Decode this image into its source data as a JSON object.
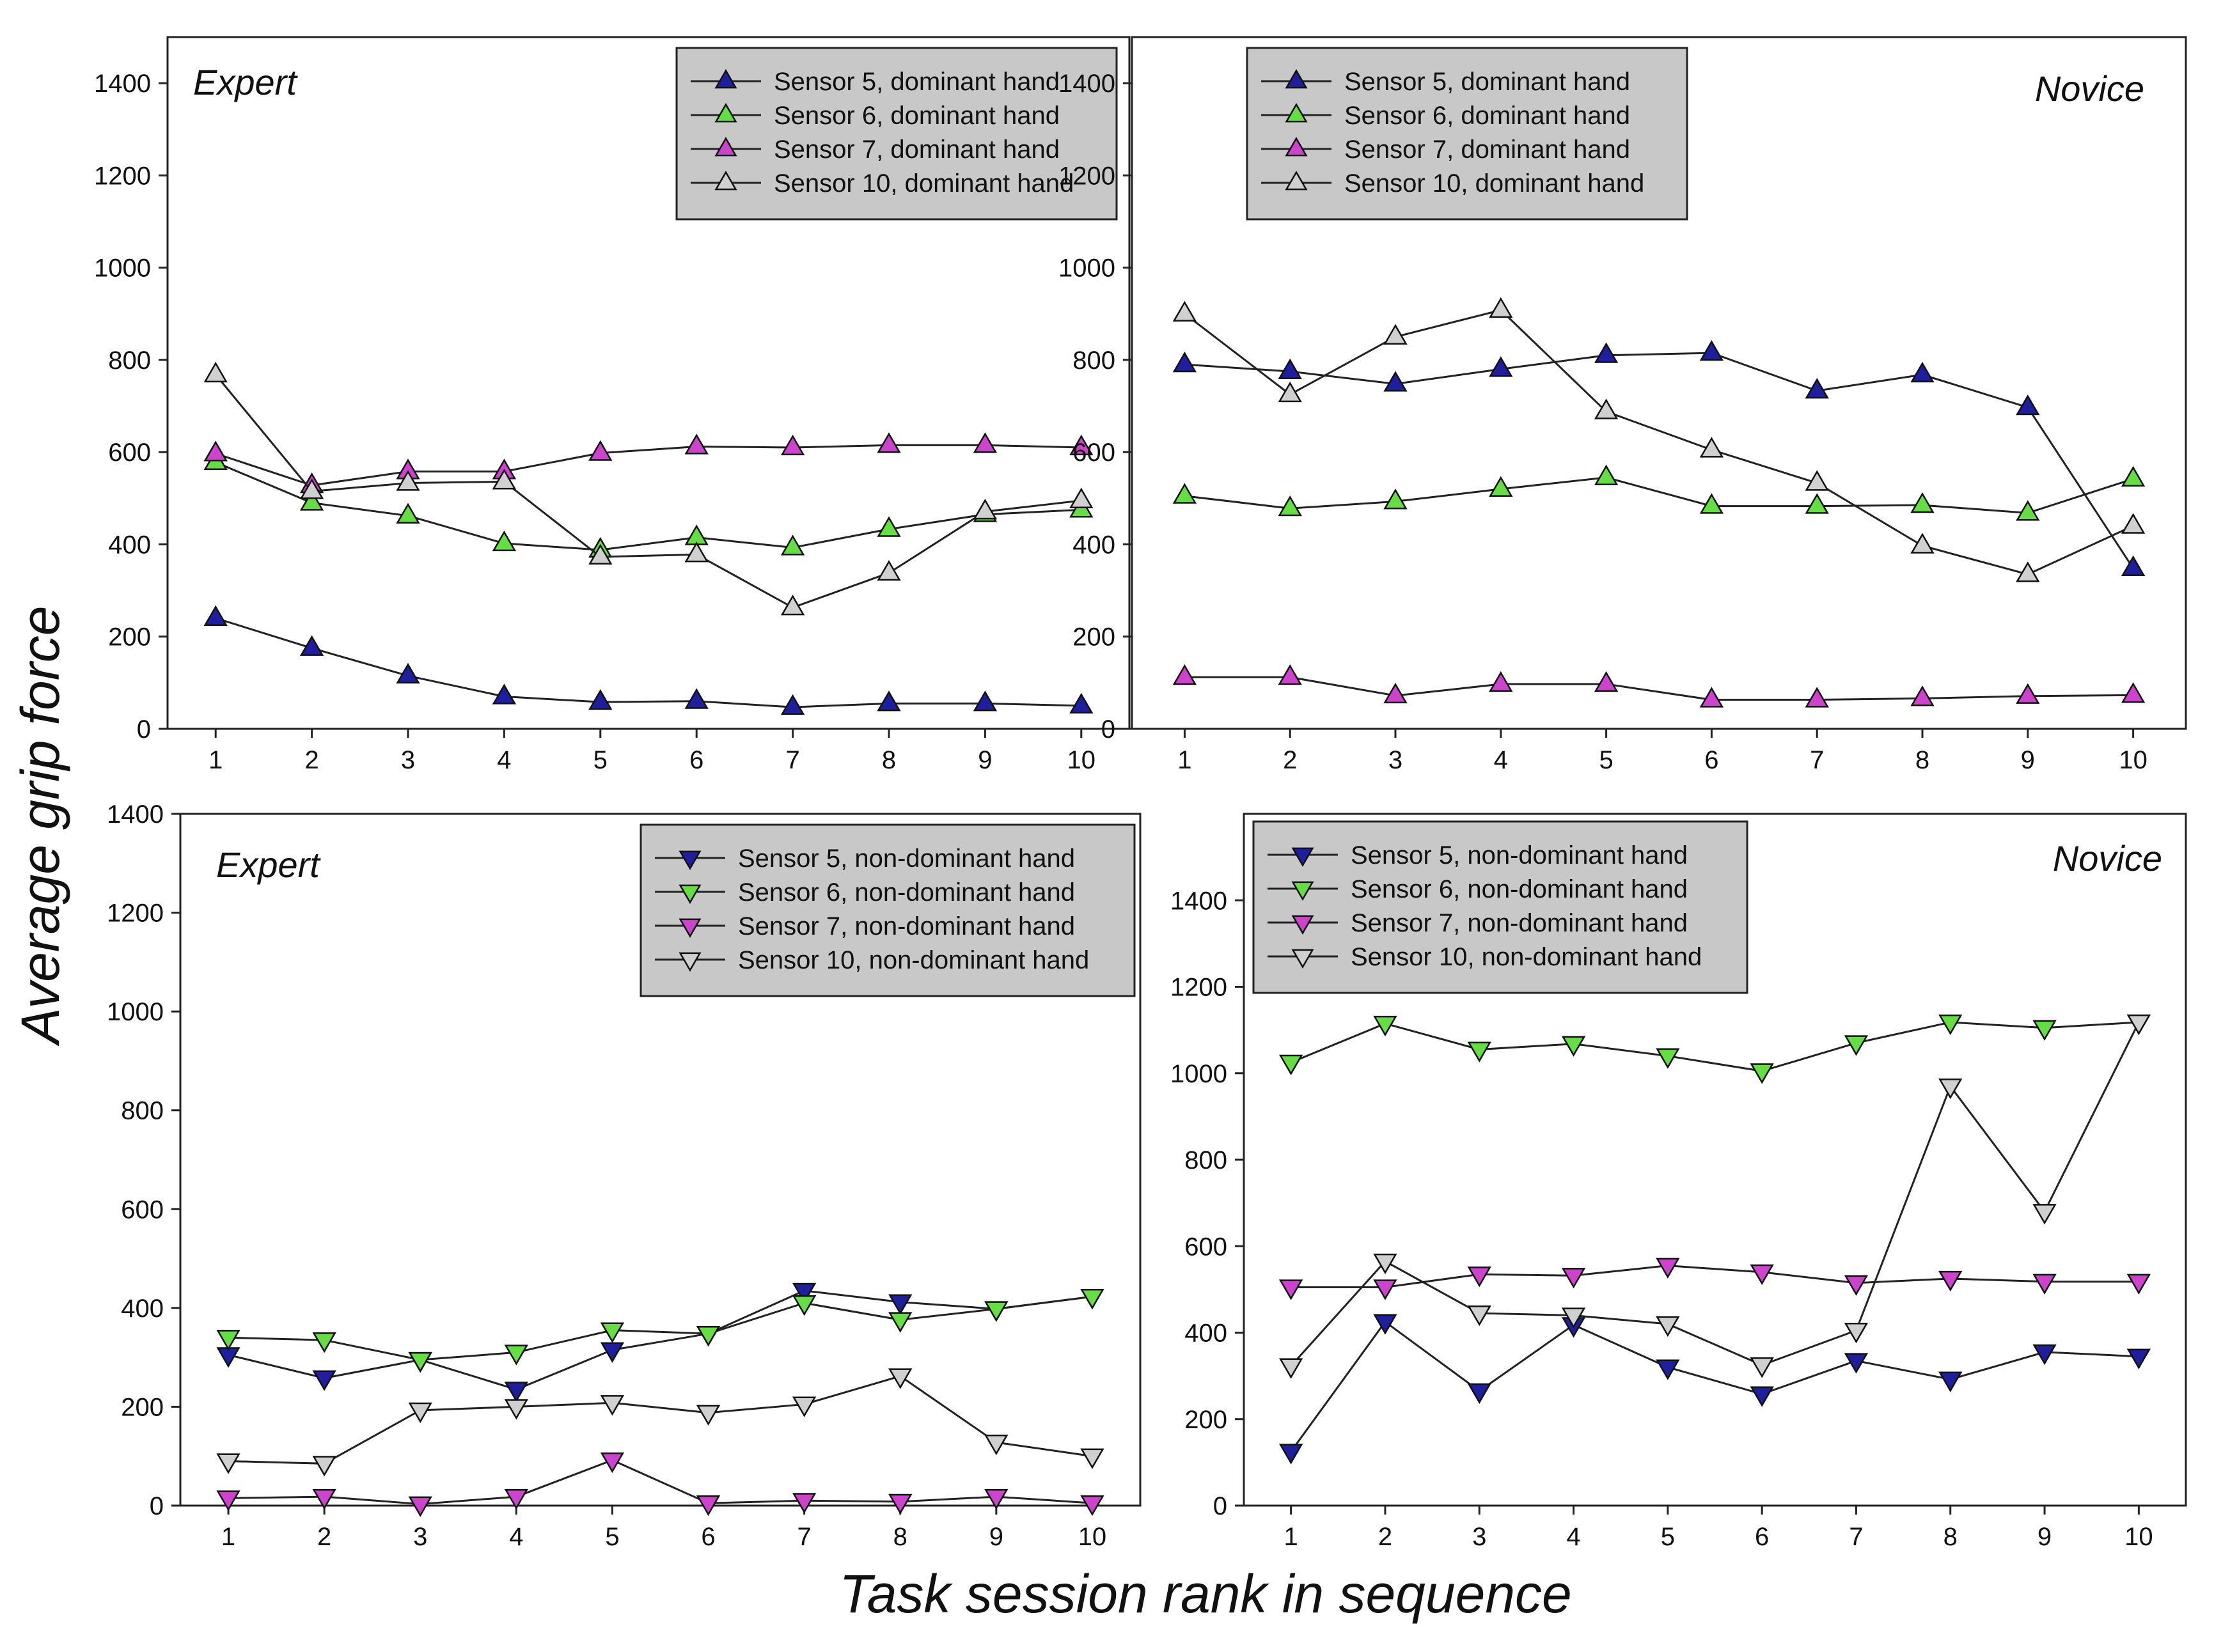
{
  "figure": {
    "ylabel": "Average grip force",
    "xlabel": "Task session rank in sequence"
  },
  "colors": {
    "sensor5": "#1f1f9e",
    "sensor6": "#66dd44",
    "sensor7": "#cc44cc",
    "sensor10": "#d0d0d0",
    "line": "#222222",
    "legend_bg": "#c8c8c8"
  },
  "chart_data": [
    {
      "type": "line",
      "title": "Expert",
      "marker": "triangle-up",
      "x": [
        1,
        2,
        3,
        4,
        5,
        6,
        7,
        8,
        9,
        10
      ],
      "xlim": [
        0.5,
        10.5
      ],
      "ylim": [
        0,
        1500
      ],
      "yticks": [
        0,
        200,
        400,
        600,
        800,
        1000,
        1200,
        1400
      ],
      "legend_position": "top-right",
      "series": [
        {
          "name": "Sensor 5, dominant hand",
          "color_key": "sensor5",
          "values": [
            240,
            175,
            115,
            70,
            58,
            60,
            47,
            55,
            55,
            50
          ]
        },
        {
          "name": "Sensor 6, dominant hand",
          "color_key": "sensor6",
          "values": [
            578,
            490,
            462,
            402,
            388,
            415,
            393,
            433,
            465,
            475
          ]
        },
        {
          "name": "Sensor 7, dominant hand",
          "color_key": "sensor7",
          "values": [
            597,
            528,
            558,
            558,
            598,
            612,
            610,
            615,
            615,
            610
          ]
        },
        {
          "name": "Sensor 10, dominant hand",
          "color_key": "sensor10",
          "values": [
            768,
            515,
            533,
            536,
            373,
            378,
            263,
            338,
            471,
            495
          ]
        }
      ]
    },
    {
      "type": "line",
      "title": "Novice",
      "marker": "triangle-up",
      "x": [
        1,
        2,
        3,
        4,
        5,
        6,
        7,
        8,
        9,
        10
      ],
      "xlim": [
        0.5,
        10.5
      ],
      "ylim": [
        0,
        1500
      ],
      "yticks": [
        0,
        200,
        400,
        600,
        800,
        1000,
        1200,
        1400
      ],
      "legend_position": "top-left",
      "series": [
        {
          "name": "Sensor 5, dominant hand",
          "color_key": "sensor5",
          "values": [
            790,
            775,
            748,
            780,
            810,
            815,
            733,
            768,
            697,
            348
          ]
        },
        {
          "name": "Sensor 6, dominant hand",
          "color_key": "sensor6",
          "values": [
            505,
            478,
            493,
            520,
            545,
            483,
            483,
            485,
            468,
            542
          ]
        },
        {
          "name": "Sensor 7, dominant hand",
          "color_key": "sensor7",
          "values": [
            112,
            112,
            72,
            97,
            97,
            63,
            63,
            66,
            71,
            73
          ]
        },
        {
          "name": "Sensor 10, dominant hand",
          "color_key": "sensor10",
          "values": [
            900,
            725,
            850,
            908,
            688,
            605,
            533,
            397,
            335,
            440
          ]
        }
      ]
    },
    {
      "type": "line",
      "title": "Expert",
      "marker": "triangle-down",
      "x": [
        1,
        2,
        3,
        4,
        5,
        6,
        7,
        8,
        9,
        10
      ],
      "xlim": [
        0.5,
        10.5
      ],
      "ylim": [
        0,
        1400
      ],
      "yticks": [
        0,
        200,
        400,
        600,
        800,
        1000,
        1200,
        1400
      ],
      "legend_position": "top-right",
      "series": [
        {
          "name": "Sensor 5, non-dominant hand",
          "color_key": "sensor5",
          "values": [
            305,
            258,
            295,
            235,
            315,
            348,
            435,
            412,
            398,
            423
          ]
        },
        {
          "name": "Sensor 6, non-dominant hand",
          "color_key": "sensor6",
          "values": [
            340,
            335,
            295,
            310,
            355,
            348,
            410,
            376,
            398,
            423
          ]
        },
        {
          "name": "Sensor 7, non-dominant hand",
          "color_key": "sensor7",
          "values": [
            15,
            18,
            3,
            18,
            92,
            5,
            10,
            8,
            18,
            5
          ]
        },
        {
          "name": "Sensor 10, non-dominant hand",
          "color_key": "sensor10",
          "values": [
            90,
            85,
            193,
            200,
            208,
            188,
            205,
            262,
            128,
            100
          ]
        }
      ]
    },
    {
      "type": "line",
      "title": "Novice",
      "marker": "triangle-down",
      "x": [
        1,
        2,
        3,
        4,
        5,
        6,
        7,
        8,
        9,
        10
      ],
      "xlim": [
        0.5,
        10.5
      ],
      "ylim": [
        0,
        1600
      ],
      "yticks": [
        0,
        200,
        400,
        600,
        800,
        1000,
        1200,
        1400
      ],
      "legend_position": "top-left",
      "series": [
        {
          "name": "Sensor 5, non-dominant hand",
          "color_key": "sensor5",
          "values": [
            125,
            425,
            265,
            418,
            320,
            258,
            335,
            292,
            355,
            345
          ]
        },
        {
          "name": "Sensor 6, non-dominant hand",
          "color_key": "sensor6",
          "values": [
            1025,
            1115,
            1055,
            1068,
            1040,
            1005,
            1070,
            1118,
            1105,
            1118
          ]
        },
        {
          "name": "Sensor 7, non-dominant hand",
          "color_key": "sensor7",
          "values": [
            505,
            505,
            535,
            532,
            555,
            540,
            515,
            525,
            518,
            518
          ]
        },
        {
          "name": "Sensor 10, non-dominant hand",
          "color_key": "sensor10",
          "values": [
            323,
            565,
            445,
            440,
            420,
            325,
            405,
            970,
            680,
            1118
          ]
        }
      ]
    }
  ]
}
